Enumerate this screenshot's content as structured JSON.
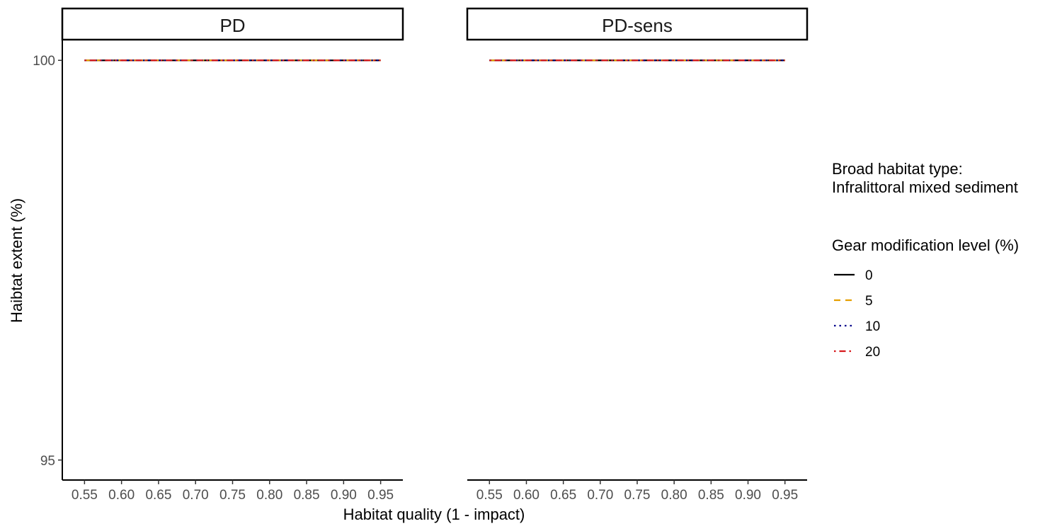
{
  "chart_data": {
    "type": "line",
    "xlabel": "Habitat quality (1 - impact)",
    "ylabel": "Haibtat extent (%)",
    "xlim": [
      0.52,
      0.98
    ],
    "ylim": [
      94.75,
      100.25
    ],
    "x_ticks": [
      "0.55",
      "0.60",
      "0.65",
      "0.70",
      "0.75",
      "0.80",
      "0.85",
      "0.90",
      "0.95"
    ],
    "y_ticks": [
      "95",
      "100"
    ],
    "x": [
      0.55,
      0.6,
      0.65,
      0.7,
      0.75,
      0.8,
      0.85,
      0.9,
      0.95
    ],
    "grid": false,
    "panels": [
      {
        "title": "PD",
        "series": [
          {
            "name": "0",
            "color": "#000000",
            "dash": "solid",
            "values": [
              100,
              100,
              100,
              100,
              100,
              100,
              100,
              100,
              100
            ]
          },
          {
            "name": "5",
            "color": "#E69F00",
            "dash": "dashed",
            "values": [
              100,
              100,
              100,
              100,
              100,
              100,
              100,
              100,
              100
            ]
          },
          {
            "name": "10",
            "color": "#00008B",
            "dash": "dotted",
            "values": [
              100,
              100,
              100,
              100,
              100,
              100,
              100,
              100,
              100
            ]
          },
          {
            "name": "20",
            "color": "#D7191C",
            "dash": "dotdash",
            "values": [
              100,
              100,
              100,
              100,
              100,
              100,
              100,
              100,
              100
            ]
          }
        ]
      },
      {
        "title": "PD-sens",
        "series": [
          {
            "name": "0",
            "color": "#000000",
            "dash": "solid",
            "values": [
              100,
              100,
              100,
              100,
              100,
              100,
              100,
              100,
              100
            ]
          },
          {
            "name": "5",
            "color": "#E69F00",
            "dash": "dashed",
            "values": [
              100,
              100,
              100,
              100,
              100,
              100,
              100,
              100,
              100
            ]
          },
          {
            "name": "10",
            "color": "#00008B",
            "dash": "dotted",
            "values": [
              100,
              100,
              100,
              100,
              100,
              100,
              100,
              100,
              100
            ]
          },
          {
            "name": "20",
            "color": "#D7191C",
            "dash": "dotdash",
            "values": [
              100,
              100,
              100,
              100,
              100,
              100,
              100,
              100,
              100
            ]
          }
        ]
      }
    ],
    "legend": {
      "position": "right",
      "habitat_title_line1": "Broad habitat type:",
      "habitat_title_line2": "Infralittoral mixed sediment",
      "gear_title": "Gear modification level (%)",
      "entries": [
        {
          "label": "0",
          "color": "#000000",
          "dash": "solid"
        },
        {
          "label": "5",
          "color": "#E69F00",
          "dash": "dashed"
        },
        {
          "label": "10",
          "color": "#00008B",
          "dash": "dotted"
        },
        {
          "label": "20",
          "color": "#D7191C",
          "dash": "dotdash"
        }
      ]
    }
  }
}
